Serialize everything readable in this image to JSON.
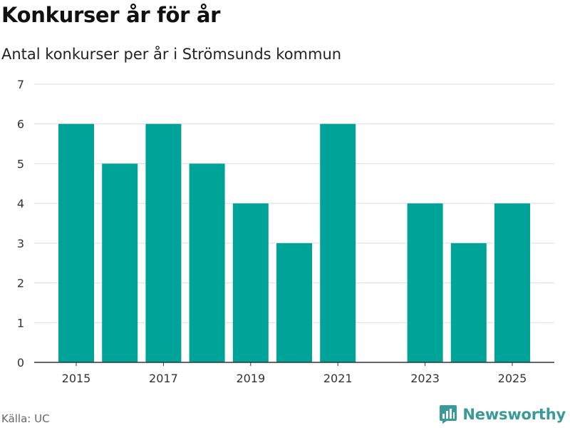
{
  "title": "Konkurser år för år",
  "subtitle": "Antal konkurser per år i Strömsunds kommun",
  "source": "Källa: UC",
  "brand": {
    "name": "Newsworthy",
    "icon": "bar-chart-logo-icon"
  },
  "colors": {
    "bar": "#00a398",
    "grid": "#dddddd",
    "axis": "#333333",
    "brand": "#3a9a98"
  },
  "chart_data": {
    "type": "bar",
    "title": "Konkurser år för år",
    "subtitle": "Antal konkurser per år i Strömsunds kommun",
    "categories": [
      "2015",
      "2016",
      "2017",
      "2018",
      "2019",
      "2020",
      "2021",
      "2022",
      "2023",
      "2024",
      "2025"
    ],
    "values": [
      6,
      5,
      6,
      5,
      4,
      3,
      6,
      0,
      4,
      3,
      4
    ],
    "x_tick_labels": [
      "2015",
      "2017",
      "2019",
      "2021",
      "2023",
      "2025"
    ],
    "y_ticks": [
      0,
      1,
      2,
      3,
      4,
      5,
      6,
      7
    ],
    "ylim": [
      0,
      7
    ],
    "xlabel": "",
    "ylabel": "",
    "grid": true,
    "legend": "none"
  }
}
